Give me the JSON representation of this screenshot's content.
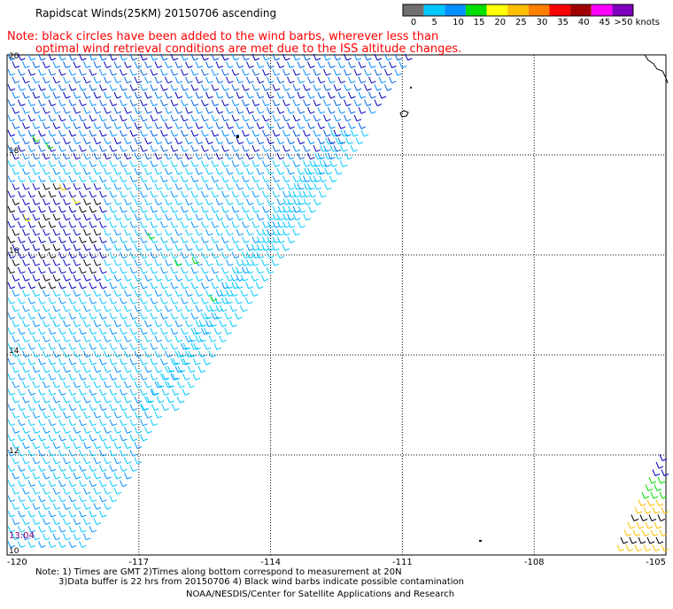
{
  "title": "Rapidscat Winds(25KM) 20150706 ascending",
  "note_line1": "Note: black circles have been added to the wind barbs, wherever less than",
  "note_line2": "optimal wind retrieval conditions are met due to the ISS altitude changes.",
  "color_scale": {
    "unit_label": ">50 knots",
    "tick_labels": [
      "0",
      "5",
      "10",
      "15",
      "20",
      "25",
      "30",
      "35",
      "40",
      "45"
    ],
    "colors": [
      "#707070",
      "#00c8ff",
      "#0090ff",
      "#00e000",
      "#ffff00",
      "#ffc000",
      "#ff8000",
      "#ff0000",
      "#a00000",
      "#ff00ff",
      "#8000c0"
    ]
  },
  "map": {
    "lat_labels": [
      "20",
      "18",
      "16",
      "14",
      "12",
      "10"
    ],
    "lon_labels": [
      "-120",
      "-117",
      "-114",
      "-111",
      "-108",
      "-105"
    ],
    "lat_range": [
      10,
      20
    ],
    "lon_range": [
      -120,
      -105
    ]
  },
  "timestamp": "13:04",
  "footer_line1": "Note: 1) Times are GMT 2)Times along bottom correspond to measurement at 20N",
  "footer_line2": "3)Data buffer is 22 hrs from 20150706 4) Black wind barbs indicate possible contamination",
  "footer_line3": "NOAA/NESDIS/Center for Satellite Applications and Research"
}
